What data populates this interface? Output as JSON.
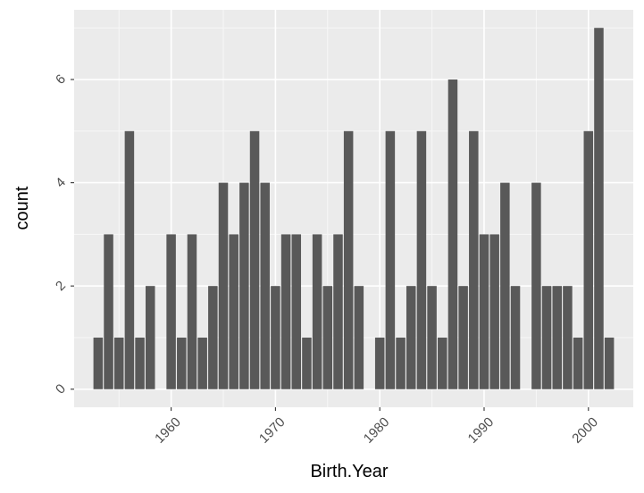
{
  "chart_data": {
    "type": "bar",
    "xlabel": "Birth.Year",
    "ylabel": "count",
    "x": [
      1953,
      1954,
      1955,
      1956,
      1957,
      1958,
      1960,
      1961,
      1962,
      1963,
      1964,
      1965,
      1966,
      1967,
      1968,
      1969,
      1970,
      1971,
      1972,
      1973,
      1974,
      1975,
      1976,
      1977,
      1978,
      1980,
      1981,
      1982,
      1983,
      1984,
      1985,
      1986,
      1987,
      1988,
      1989,
      1990,
      1991,
      1992,
      1993,
      1995,
      1996,
      1997,
      1998,
      1999,
      2000,
      2001,
      2002
    ],
    "values": [
      1,
      3,
      1,
      5,
      1,
      2,
      3,
      1,
      3,
      1,
      2,
      4,
      3,
      4,
      5,
      4,
      2,
      3,
      3,
      1,
      3,
      2,
      3,
      5,
      2,
      1,
      5,
      1,
      2,
      5,
      2,
      1,
      6,
      2,
      5,
      3,
      3,
      4,
      2,
      4,
      2,
      2,
      2,
      1,
      5,
      7,
      1
    ],
    "xlim": [
      1950.7,
      2004.3
    ],
    "ylim": [
      -0.35,
      7.35
    ],
    "x_ticks": [
      1960,
      1970,
      1980,
      1990,
      2000
    ],
    "y_ticks": [
      0,
      2,
      4,
      6
    ],
    "grid": true,
    "colors": {
      "bar": "#595959",
      "panel": "#ebebeb",
      "grid_major": "#ffffff"
    }
  }
}
